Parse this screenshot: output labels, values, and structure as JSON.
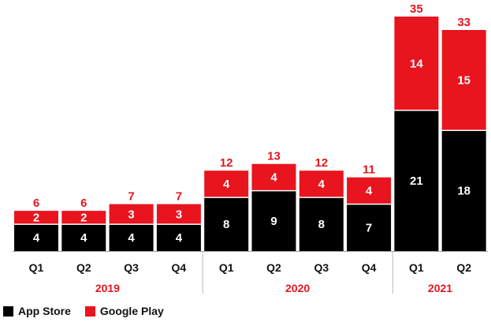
{
  "chart_data": {
    "type": "bar",
    "stacked": true,
    "categories": [
      "Q1",
      "Q2",
      "Q3",
      "Q4",
      "Q1",
      "Q2",
      "Q3",
      "Q4",
      "Q1",
      "Q2"
    ],
    "groups": [
      {
        "label": "2019",
        "count": 4
      },
      {
        "label": "2020",
        "count": 4
      },
      {
        "label": "2021",
        "count": 2
      }
    ],
    "series": [
      {
        "name": "App Store",
        "color": "#000000",
        "values": [
          4,
          4,
          4,
          4,
          8,
          9,
          8,
          7,
          21,
          18
        ]
      },
      {
        "name": "Google Play",
        "color": "#e8141e",
        "values": [
          2,
          2,
          3,
          3,
          4,
          4,
          4,
          4,
          14,
          15
        ]
      }
    ],
    "totals": [
      6,
      6,
      7,
      7,
      12,
      13,
      12,
      11,
      35,
      33
    ],
    "ylim": [
      0,
      35
    ],
    "title": "",
    "xlabel": "",
    "ylabel": "",
    "grid": false,
    "legend": "bottom-left"
  }
}
